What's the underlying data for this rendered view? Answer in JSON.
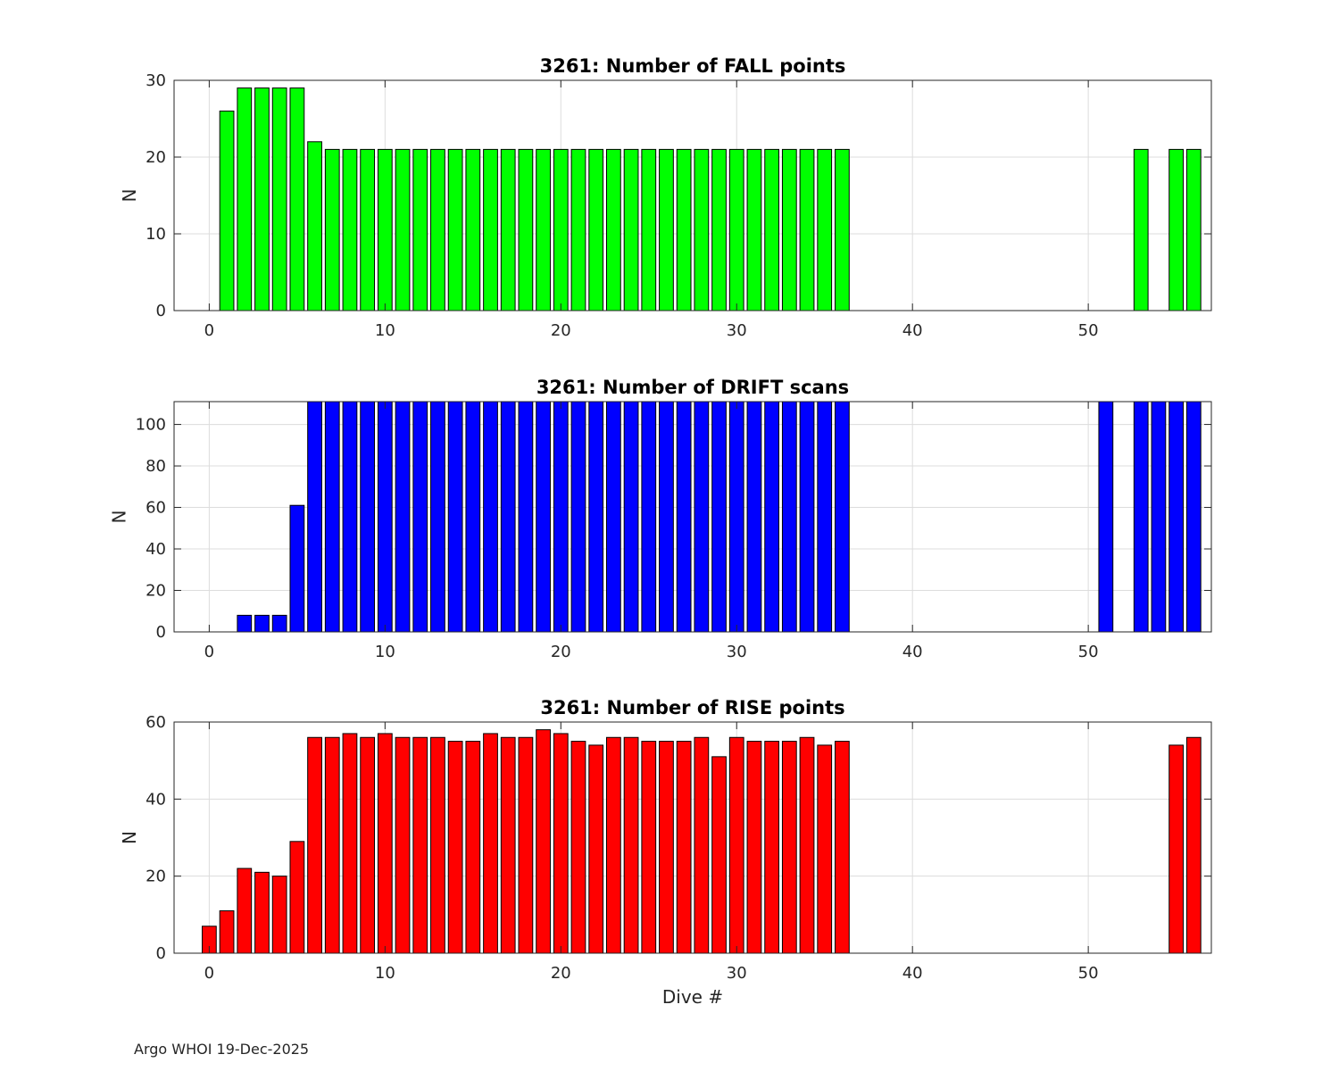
{
  "footer": "Argo WHOI 19-Dec-2025",
  "chart_data": [
    {
      "type": "bar",
      "title": "3261: Number of FALL points",
      "xlabel": "",
      "ylabel": "N",
      "xlim": [
        -2,
        57
      ],
      "ylim": [
        0,
        30
      ],
      "xticks": [
        0,
        10,
        20,
        30,
        40,
        50
      ],
      "yticks": [
        0,
        10,
        20,
        30
      ],
      "grid": true,
      "color": "#00ff00",
      "x": [
        1,
        2,
        3,
        4,
        5,
        6,
        7,
        8,
        9,
        10,
        11,
        12,
        13,
        14,
        15,
        16,
        17,
        18,
        19,
        20,
        21,
        22,
        23,
        24,
        25,
        26,
        27,
        28,
        29,
        30,
        31,
        32,
        33,
        34,
        35,
        36,
        53,
        55,
        56
      ],
      "values": [
        26,
        29,
        29,
        29,
        29,
        22,
        21,
        21,
        21,
        21,
        21,
        21,
        21,
        21,
        21,
        21,
        21,
        21,
        21,
        21,
        21,
        21,
        21,
        21,
        21,
        21,
        21,
        21,
        21,
        21,
        21,
        21,
        21,
        21,
        21,
        21,
        21,
        21,
        21
      ]
    },
    {
      "type": "bar",
      "title": "3261: Number of DRIFT scans",
      "xlabel": "",
      "ylabel": "N",
      "xlim": [
        -2,
        57
      ],
      "ylim": [
        0,
        111
      ],
      "xticks": [
        0,
        10,
        20,
        30,
        40,
        50
      ],
      "yticks": [
        0,
        20,
        40,
        60,
        80,
        100
      ],
      "grid": true,
      "color": "#0000ff",
      "x": [
        -1,
        0,
        1,
        2,
        3,
        4,
        5,
        6,
        7,
        8,
        9,
        10,
        11,
        12,
        13,
        14,
        15,
        16,
        17,
        18,
        19,
        20,
        21,
        22,
        23,
        24,
        25,
        26,
        27,
        28,
        29,
        30,
        31,
        32,
        33,
        34,
        35,
        36,
        51,
        53,
        54,
        55,
        56
      ],
      "values": [
        0,
        0,
        0,
        8,
        8,
        8,
        61,
        111,
        111,
        111,
        111,
        111,
        111,
        111,
        111,
        111,
        111,
        111,
        111,
        111,
        111,
        111,
        111,
        111,
        111,
        111,
        111,
        111,
        111,
        111,
        111,
        111,
        111,
        111,
        111,
        111,
        111,
        111,
        111,
        111,
        111,
        111,
        111
      ]
    },
    {
      "type": "bar",
      "title": "3261: Number of RISE points",
      "xlabel": "Dive #",
      "ylabel": "N",
      "xlim": [
        -2,
        57
      ],
      "ylim": [
        0,
        60
      ],
      "xticks": [
        0,
        10,
        20,
        30,
        40,
        50
      ],
      "yticks": [
        0,
        20,
        40,
        60
      ],
      "grid": true,
      "color": "#ff0000",
      "x": [
        0,
        1,
        2,
        3,
        4,
        5,
        6,
        7,
        8,
        9,
        10,
        11,
        12,
        13,
        14,
        15,
        16,
        17,
        18,
        19,
        20,
        21,
        22,
        23,
        24,
        25,
        26,
        27,
        28,
        29,
        30,
        31,
        32,
        33,
        34,
        35,
        36,
        55,
        56
      ],
      "values": [
        7,
        11,
        22,
        21,
        20,
        29,
        56,
        56,
        57,
        56,
        57,
        56,
        56,
        56,
        55,
        55,
        57,
        56,
        56,
        58,
        57,
        55,
        54,
        56,
        56,
        55,
        55,
        55,
        56,
        51,
        56,
        55,
        55,
        55,
        56,
        54,
        55,
        54,
        56
      ]
    }
  ]
}
